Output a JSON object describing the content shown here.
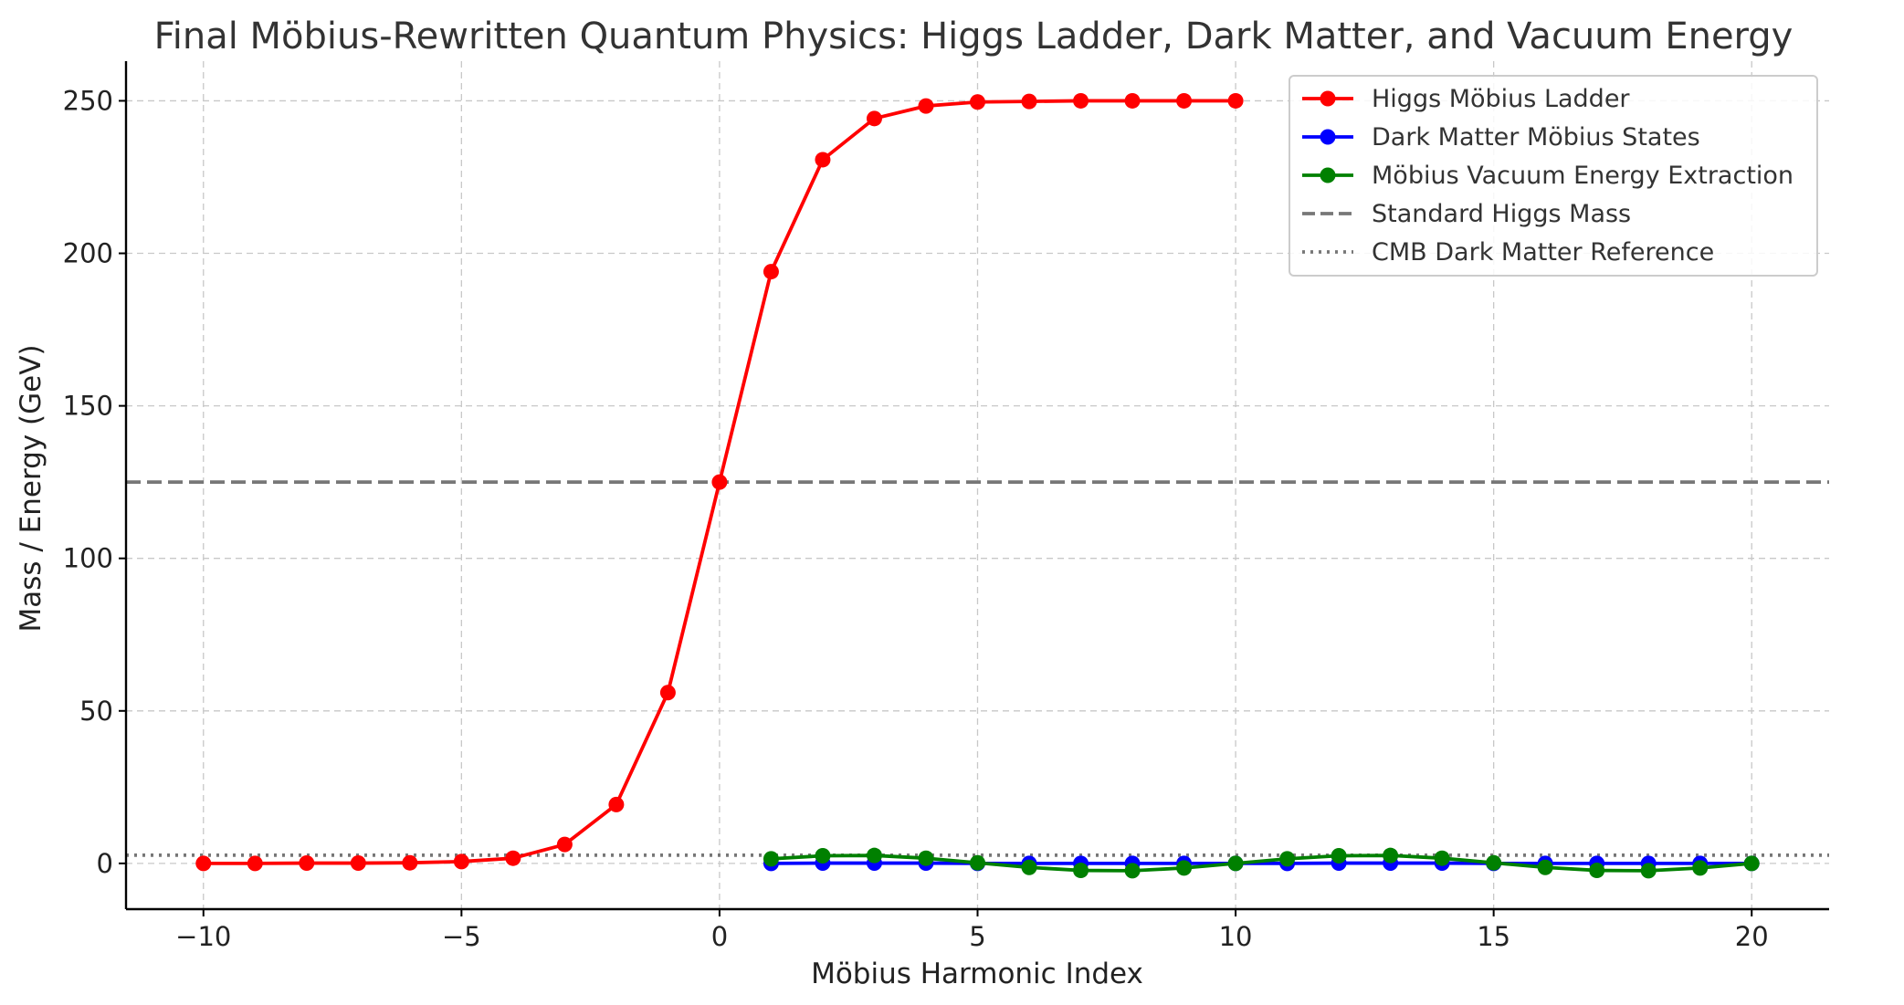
{
  "chart_data": {
    "type": "line",
    "title": "Final Möbius-Rewritten Quantum Physics: Higgs Ladder, Dark Matter, and Vacuum Energy",
    "xlabel": "Möbius Harmonic Index",
    "ylabel": "Mass / Energy (GeV)",
    "xlim": [
      -11.5,
      21.5
    ],
    "ylim": [
      -15,
      263
    ],
    "xticks": [
      -10,
      -5,
      0,
      5,
      10,
      15,
      20
    ],
    "yticks": [
      0,
      50,
      100,
      150,
      200,
      250
    ],
    "grid": true,
    "legend_position": "top-right",
    "series": [
      {
        "name": "Higgs Möbius Ladder",
        "color": "#ff0000",
        "style": "line-markers",
        "x": [
          -10,
          -9,
          -8,
          -7,
          -6,
          -5,
          -4,
          -3,
          -2,
          -1,
          0,
          1,
          2,
          3,
          4,
          5,
          6,
          7,
          8,
          9,
          10
        ],
        "y": [
          0.0,
          0.0,
          0.1,
          0.1,
          0.2,
          0.6,
          1.7,
          6.2,
          19.3,
          56.0,
          125.0,
          194.0,
          230.7,
          244.2,
          248.3,
          249.6,
          249.8,
          250.0,
          250.0,
          250.0,
          250.0
        ]
      },
      {
        "name": "Dark Matter Möbius States",
        "color": "#0000ff",
        "style": "line-markers",
        "x": [
          1,
          2,
          3,
          4,
          5,
          6,
          7,
          8,
          9,
          10,
          11,
          12,
          13,
          14,
          15,
          16,
          17,
          18,
          19,
          20
        ],
        "y": [
          0.0,
          0.1,
          0.1,
          0.1,
          0.0,
          0.0,
          0.0,
          0.0,
          0.0,
          0.0,
          0.0,
          0.1,
          0.1,
          0.1,
          0.0,
          0.0,
          0.0,
          0.0,
          0.0,
          0.0
        ]
      },
      {
        "name": "Möbius Vacuum Energy Extraction",
        "color": "#008000",
        "style": "line-markers",
        "x": [
          1,
          2,
          3,
          4,
          5,
          6,
          7,
          8,
          9,
          10,
          11,
          12,
          13,
          14,
          15,
          16,
          17,
          18,
          19,
          20
        ],
        "y": [
          1.5,
          2.5,
          2.6,
          1.7,
          0.2,
          -1.3,
          -2.3,
          -2.4,
          -1.5,
          0.0,
          1.5,
          2.5,
          2.6,
          1.7,
          0.2,
          -1.3,
          -2.3,
          -2.4,
          -1.5,
          0.0
        ]
      }
    ],
    "reference_lines": [
      {
        "name": "Standard Higgs Mass",
        "y": 125,
        "color": "#777777",
        "style": "dashed"
      },
      {
        "name": "CMB Dark Matter Reference",
        "y": 2.7,
        "color": "#777777",
        "style": "dotted"
      }
    ]
  }
}
